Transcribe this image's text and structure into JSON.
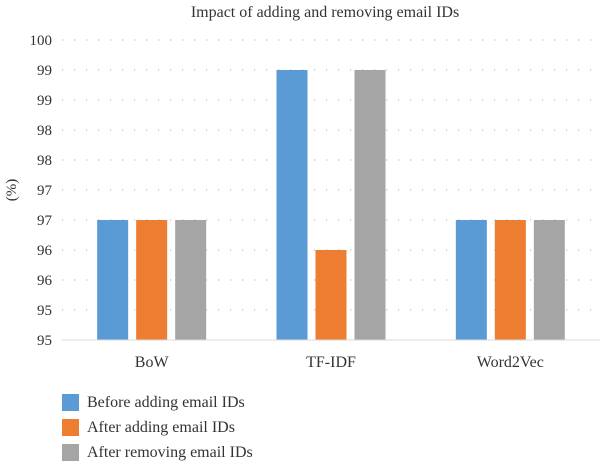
{
  "chart_data": {
    "type": "bar",
    "title": "Impact of adding and removing email IDs",
    "xlabel": "",
    "ylabel": "(%)",
    "categories": [
      "BoW",
      "TF-IDF",
      "Word2Vec"
    ],
    "y_ticks": [
      {
        "value": 95,
        "label": "95"
      },
      {
        "value": 95.5,
        "label": "95"
      },
      {
        "value": 96,
        "label": "96"
      },
      {
        "value": 96.5,
        "label": "96"
      },
      {
        "value": 97,
        "label": "97"
      },
      {
        "value": 97.5,
        "label": "97"
      },
      {
        "value": 98,
        "label": "98"
      },
      {
        "value": 98.5,
        "label": "98"
      },
      {
        "value": 99,
        "label": "99"
      },
      {
        "value": 99.5,
        "label": "99"
      },
      {
        "value": 100,
        "label": "100"
      }
    ],
    "ylim": [
      95,
      100
    ],
    "grid": "horizontal dotted",
    "legend_position": "bottom-left",
    "series": [
      {
        "name": "Before adding email IDs",
        "color": "#5B9BD5",
        "values": [
          97,
          99.5,
          97
        ]
      },
      {
        "name": "After adding email IDs",
        "color": "#ED7D31",
        "values": [
          97,
          96.5,
          97
        ]
      },
      {
        "name": "After removing email IDs",
        "color": "#A5A5A5",
        "values": [
          97,
          99.5,
          97
        ]
      }
    ]
  }
}
